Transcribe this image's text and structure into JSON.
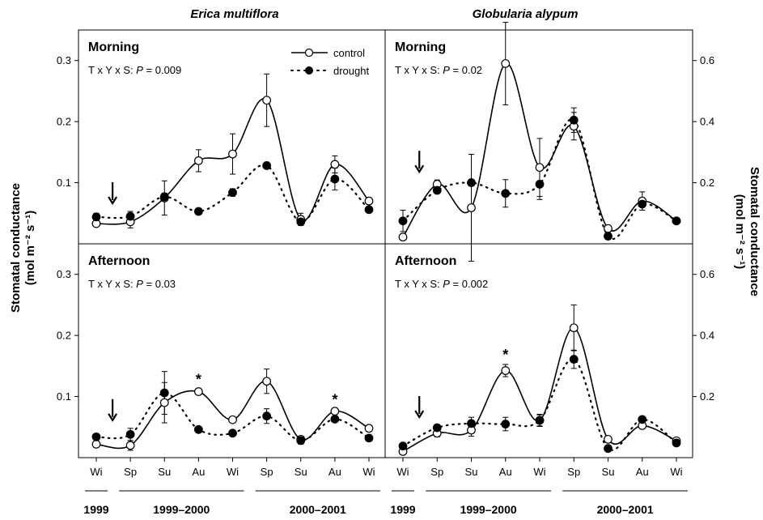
{
  "chart_data": {
    "type": "line",
    "categories": [
      "Wi",
      "Sp",
      "Su",
      "Au",
      "Wi",
      "Sp",
      "Su",
      "Au",
      "Wi"
    ],
    "year_groups": [
      {
        "label": "1999",
        "from": 0,
        "to": 0
      },
      {
        "label": "1999–2000",
        "from": 1,
        "to": 4
      },
      {
        "label": "2000–2001",
        "from": 5,
        "to": 8
      }
    ],
    "species": [
      "Erica multiflora",
      "Globularia alypum"
    ],
    "ylabel_main": "Stomatal conductance",
    "ylabel_unit": "(mol m⁻² s⁻¹)",
    "legend": {
      "control": "control",
      "drought": "drought"
    },
    "panels": [
      {
        "id": "em-morning",
        "period": "Morning",
        "stat_prefix": "T x Y x S: ",
        "stat_p": "P",
        "stat_value": " = 0.009",
        "ylim": [
          0,
          0.35
        ],
        "yticks": [
          0.1,
          0.2,
          0.3
        ],
        "ytick_labels": [
          "0.1",
          "0.2",
          "0.3"
        ],
        "axis_side": "left",
        "arrow_at": 1,
        "stars": [],
        "series": [
          {
            "name": "control",
            "values": [
              0.033,
              0.036,
              0.075,
              0.136,
              0.147,
              0.235,
              0.04,
              0.13,
              0.07
            ],
            "err": [
              0.004,
              0.01,
              0.028,
              0.018,
              0.033,
              0.043,
              0.01,
              0.014,
              0.004
            ]
          },
          {
            "name": "drought",
            "values": [
              0.044,
              0.045,
              0.077,
              0.053,
              0.084,
              0.128,
              0.036,
              0.106,
              0.056
            ],
            "err": [
              0.006,
              0.008,
              0.006,
              0.003,
              0.006,
              0.004,
              0.005,
              0.018,
              0.004
            ]
          }
        ]
      },
      {
        "id": "ga-morning",
        "period": "Morning",
        "stat_prefix": "T x Y x S: ",
        "stat_p": "P",
        "stat_value": " = 0.02",
        "ylim": [
          0,
          0.7
        ],
        "yticks": [
          0.2,
          0.4,
          0.6
        ],
        "ytick_labels": [
          "0.2",
          "0.4",
          "0.6"
        ],
        "axis_side": "right",
        "arrow_at": 1,
        "stars": [],
        "series": [
          {
            "name": "control",
            "values": [
              0.022,
              0.195,
              0.118,
              0.59,
              0.25,
              0.385,
              0.05,
              0.14,
              0.075
            ],
            "err": [
              0.01,
              0.014,
              0.175,
              0.135,
              0.095,
              0.045,
              0.01,
              0.03,
              0.01
            ]
          },
          {
            "name": "drought",
            "values": [
              0.075,
              0.175,
              0.2,
              0.165,
              0.195,
              0.405,
              0.025,
              0.13,
              0.075
            ],
            "err": [
              0.035,
              0.01,
              0.01,
              0.045,
              0.05,
              0.04,
              0.008,
              0.02,
              0.01
            ]
          }
        ]
      },
      {
        "id": "em-afternoon",
        "period": "Afternoon",
        "stat_prefix": "T x Y x S: ",
        "stat_p": "P",
        "stat_value": " = 0.03",
        "ylim": [
          0,
          0.35
        ],
        "yticks": [
          0.1,
          0.2,
          0.3
        ],
        "ytick_labels": [
          "0.1",
          "0.2",
          "0.3"
        ],
        "axis_side": "left",
        "arrow_at": 1,
        "stars": [
          3,
          7
        ],
        "series": [
          {
            "name": "control",
            "values": [
              0.022,
              0.02,
              0.09,
              0.108,
              0.062,
              0.125,
              0.03,
              0.076,
              0.048
            ],
            "err": [
              0.003,
              0.008,
              0.033,
              0.004,
              0.004,
              0.02,
              0.005,
              0.003,
              0.004
            ]
          },
          {
            "name": "drought",
            "values": [
              0.034,
              0.038,
              0.106,
              0.046,
              0.04,
              0.068,
              0.028,
              0.063,
              0.032
            ],
            "err": [
              0.004,
              0.01,
              0.035,
              0.004,
              0.003,
              0.012,
              0.006,
              0.004,
              0.004
            ]
          }
        ]
      },
      {
        "id": "ga-afternoon",
        "period": "Afternoon",
        "stat_prefix": "T x Y x S: ",
        "stat_p": "P",
        "stat_value": " = 0.002",
        "ylim": [
          0,
          0.7
        ],
        "yticks": [
          0.2,
          0.4,
          0.6
        ],
        "ytick_labels": [
          "0.2",
          "0.4",
          "0.6"
        ],
        "axis_side": "right",
        "arrow_at": 1,
        "stars": [
          3
        ],
        "series": [
          {
            "name": "control",
            "values": [
              0.02,
              0.08,
              0.09,
              0.285,
              0.122,
              0.425,
              0.06,
              0.105,
              0.055
            ],
            "err": [
              0.008,
              0.012,
              0.02,
              0.02,
              0.02,
              0.075,
              0.008,
              0.008,
              0.008
            ]
          },
          {
            "name": "drought",
            "values": [
              0.038,
              0.098,
              0.112,
              0.11,
              0.122,
              0.322,
              0.03,
              0.125,
              0.048
            ],
            "err": [
              0.008,
              0.008,
              0.02,
              0.022,
              0.018,
              0.03,
              0.006,
              0.006,
              0.006
            ]
          }
        ]
      }
    ]
  }
}
